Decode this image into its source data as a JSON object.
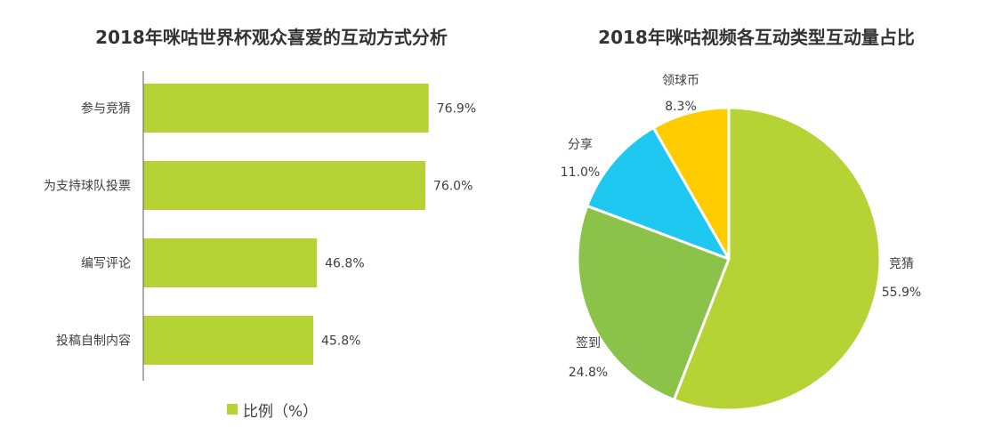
{
  "colors": {
    "bar": "#b5d334",
    "axis": "#595959",
    "slice_border": "#ffffff"
  },
  "chart_data": [
    {
      "type": "bar",
      "orientation": "horizontal",
      "title": "2018年咪咕世界杯观众喜爱的互动方式分析",
      "categories": [
        "参与竞猜",
        "为支持球队投票",
        "编写评论",
        "投稿自制内容"
      ],
      "values": [
        76.9,
        76.0,
        46.8,
        45.8
      ],
      "value_labels": [
        "76.9%",
        "76.0%",
        "46.8%",
        "45.8%"
      ],
      "unit": "%",
      "xlim": [
        0,
        100
      ],
      "legend": {
        "label": "比例（%）",
        "position": "bottom"
      }
    },
    {
      "type": "pie",
      "title": "2018年咪咕视频各互动类型互动量占比",
      "slices": [
        {
          "label": "竞猜",
          "value": 55.9,
          "value_label": "55.9%",
          "color": "#b5d334"
        },
        {
          "label": "签到",
          "value": 24.8,
          "value_label": "24.8%",
          "color": "#8bc34a"
        },
        {
          "label": "分享",
          "value": 11.0,
          "value_label": "11.0%",
          "color": "#1ec8f0"
        },
        {
          "label": "领球币",
          "value": 8.3,
          "value_label": "8.3%",
          "color": "#ffcc00"
        }
      ],
      "start": "12 o'clock",
      "direction": "clockwise"
    }
  ]
}
